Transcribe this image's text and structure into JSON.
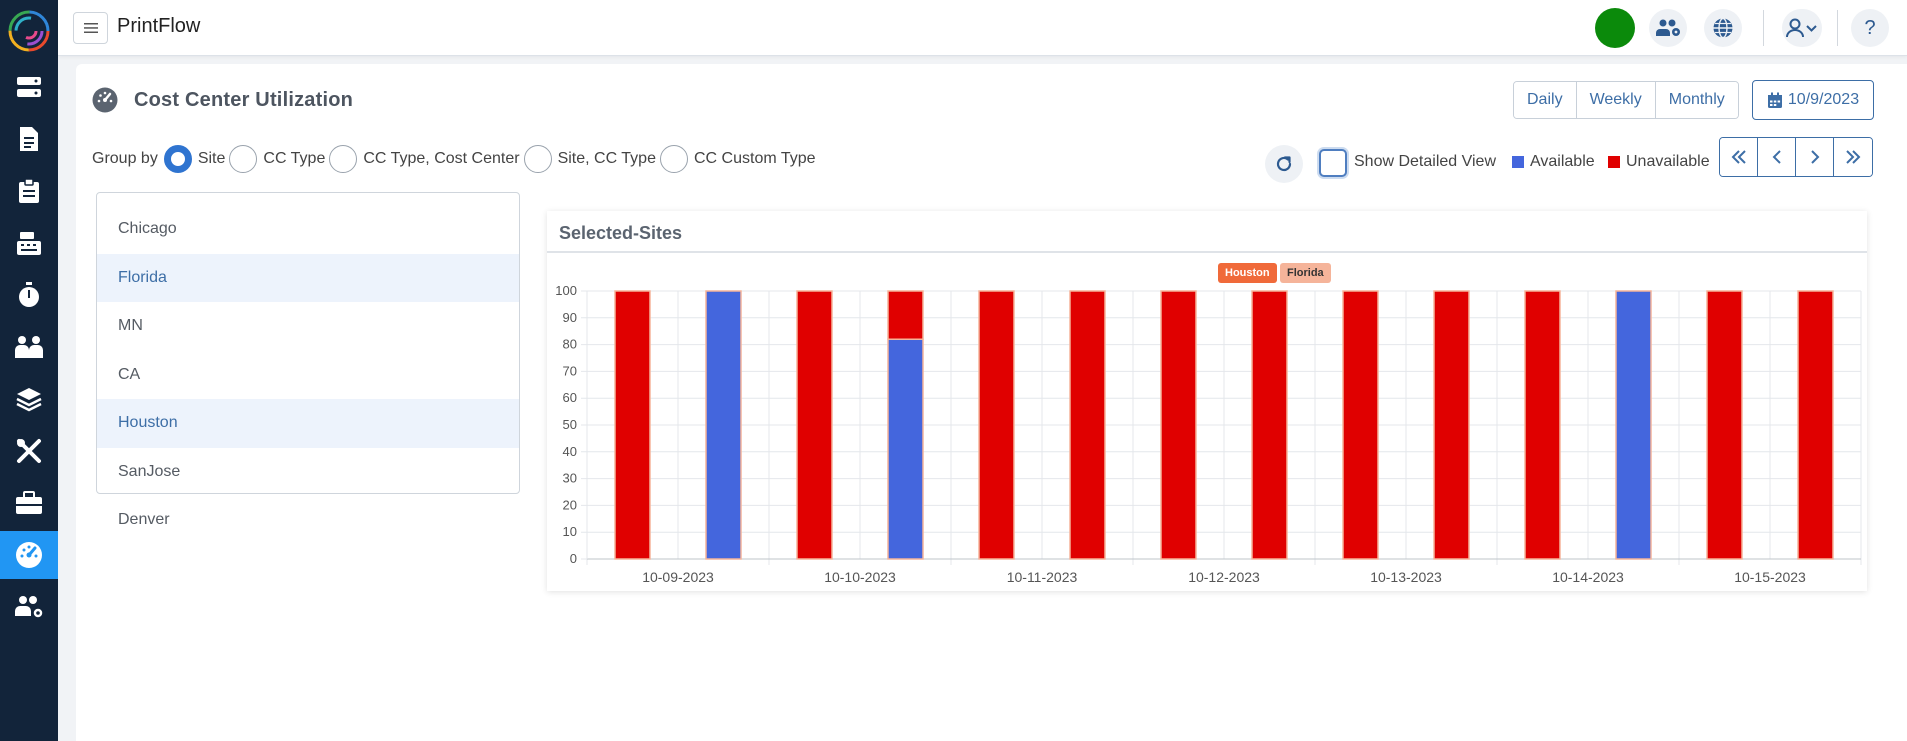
{
  "app": {
    "title": "PrintFlow"
  },
  "page": {
    "title": "Cost Center Utilization"
  },
  "period": {
    "options": [
      "Daily",
      "Weekly",
      "Monthly"
    ],
    "date": "10/9/2023"
  },
  "group_by": {
    "label": "Group by",
    "options": [
      "Site",
      "CC Type",
      "CC Type, Cost Center",
      "Site, CC Type",
      "CC Custom Type"
    ],
    "selected": "Site"
  },
  "controls": {
    "detailed_view_label": "Show Detailed View",
    "legend_available": "Available",
    "legend_unavailable": "Unavailable"
  },
  "sites": {
    "items": [
      "Chicago",
      "Florida",
      "MN",
      "CA",
      "Houston",
      "SanJose",
      "Denver"
    ],
    "selected": [
      "Florida",
      "Houston"
    ]
  },
  "colors": {
    "available": "#4466dd",
    "unavailable": "#e00000",
    "houston_legend": "#f06a3a",
    "florida_legend": "#f5b49a",
    "accent": "#3d6ea6",
    "status": "#0b8a0b"
  },
  "chart_data": {
    "type": "bar",
    "title": "Selected-Sites",
    "stacked": true,
    "legend": [
      "Houston",
      "Florida"
    ],
    "categories": [
      "10-09-2023",
      "10-10-2023",
      "10-11-2023",
      "10-12-2023",
      "10-13-2023",
      "10-14-2023",
      "10-15-2023"
    ],
    "ylim": [
      0,
      100
    ],
    "yticks": [
      0,
      10,
      20,
      30,
      40,
      50,
      60,
      70,
      80,
      90,
      100
    ],
    "series": [
      {
        "site": "Houston",
        "available": [
          0,
          0,
          0,
          0,
          0,
          0,
          0
        ],
        "unavailable": [
          100,
          100,
          100,
          100,
          100,
          100,
          100
        ]
      },
      {
        "site": "Florida",
        "available": [
          100,
          82,
          0,
          0,
          0,
          100,
          0
        ],
        "unavailable": [
          0,
          18,
          100,
          100,
          100,
          0,
          100
        ]
      }
    ]
  }
}
